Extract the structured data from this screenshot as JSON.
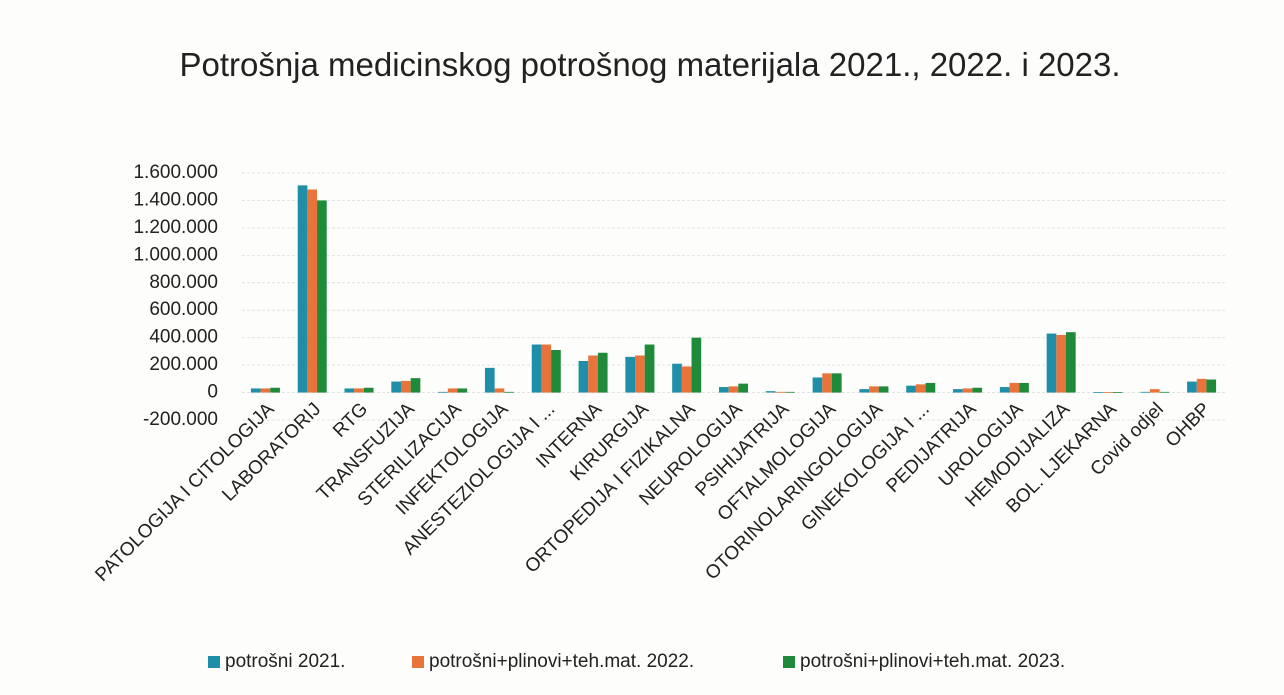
{
  "chart_data": {
    "type": "bar",
    "title": "Potrošnja medicinskog potrošnog materijala 2021., 2022. i 2023.",
    "categories": [
      "PATOLOGIJA I CITOLOGIJA",
      "LABORATORIJ",
      "RTG",
      "TRANSFUZIJA",
      "STERILIZACIJA",
      "INFEKTOLOGIJA",
      "ANESTEZIOLOGIJA I ...",
      "INTERNA",
      "KIRURGIJA",
      "ORTOPEDIJA I FIZIKALNA",
      "NEUROLOGIJA",
      "PSIHIJATRIJA",
      "OFTALMOLOGIJA",
      "OTORINOLARINGOLOGIJA",
      "GINEKOLOGIJA I ...",
      "PEDIJATRIJA",
      "UROLOGIJA",
      "HEMODIJALIZA",
      "BOL. LJEKARNA",
      "Covid odjel",
      "OHBP"
    ],
    "series": [
      {
        "name": "potrošni 2021.",
        "color": "#1f8ea8",
        "values": [
          30000,
          1510000,
          30000,
          80000,
          5000,
          180000,
          350000,
          230000,
          260000,
          210000,
          40000,
          10000,
          110000,
          25000,
          50000,
          25000,
          40000,
          430000,
          3000,
          5000,
          80000
        ]
      },
      {
        "name": "potrošni+plinovi+teh.mat. 2022.",
        "color": "#e8743b",
        "values": [
          30000,
          1480000,
          30000,
          85000,
          30000,
          30000,
          350000,
          270000,
          270000,
          190000,
          45000,
          5000,
          140000,
          45000,
          60000,
          30000,
          70000,
          420000,
          3000,
          25000,
          100000
        ]
      },
      {
        "name": "potrošni+plinovi+teh.mat. 2023.",
        "color": "#1e8a3a",
        "values": [
          35000,
          1400000,
          35000,
          105000,
          30000,
          5000,
          310000,
          290000,
          350000,
          400000,
          65000,
          5000,
          140000,
          45000,
          70000,
          35000,
          70000,
          440000,
          3000,
          5000,
          95000
        ]
      }
    ],
    "ylim": [
      -200000,
      1600000
    ],
    "yticks": [
      {
        "value": -200000,
        "label": "-200.000"
      },
      0,
      {
        "value": 200000,
        "label": "200.000"
      },
      {
        "value": 400000,
        "label": "400.000"
      },
      {
        "value": 600000,
        "label": "600.000"
      },
      {
        "value": 800000,
        "label": "800.000"
      },
      {
        "value": 1000000,
        "label": "1.000.000"
      },
      {
        "value": 1200000,
        "label": "1.200.000"
      },
      {
        "value": 1400000,
        "label": "1.400.000"
      },
      {
        "value": 1600000,
        "label": "1.600.000"
      }
    ],
    "grid": true
  }
}
